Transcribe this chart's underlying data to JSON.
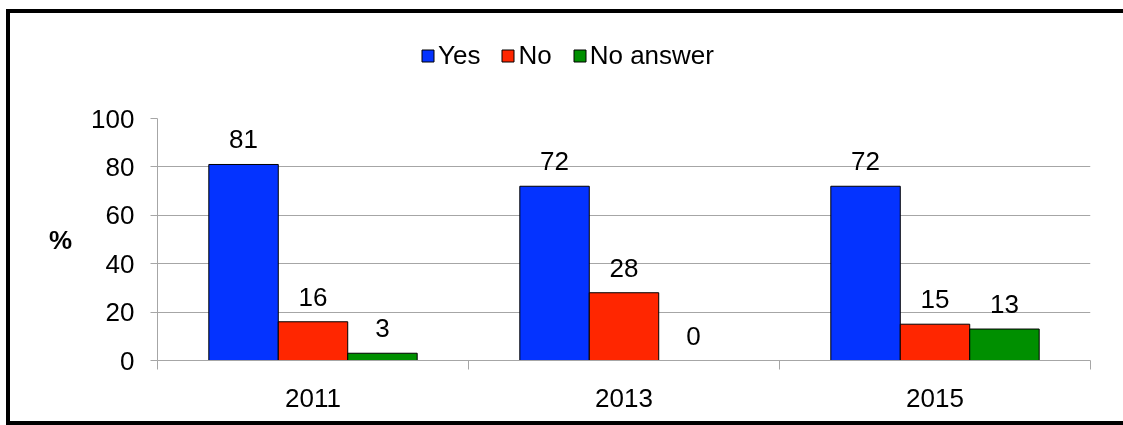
{
  "chart_data": {
    "type": "bar",
    "categories": [
      "2011",
      "2013",
      "2015"
    ],
    "series": [
      {
        "name": "Yes",
        "color": "#0433ff",
        "values": [
          81,
          72,
          72
        ]
      },
      {
        "name": "No",
        "color": "#ff2600",
        "values": [
          16,
          28,
          15
        ]
      },
      {
        "name": "No answer",
        "color": "#008f00",
        "values": [
          3,
          0,
          13
        ]
      }
    ],
    "ylabel": "%",
    "ylim": [
      0,
      100
    ],
    "yticks": [
      0,
      20,
      40,
      60,
      80,
      100
    ],
    "grid": "y",
    "legend": "top",
    "data_labels": true
  }
}
